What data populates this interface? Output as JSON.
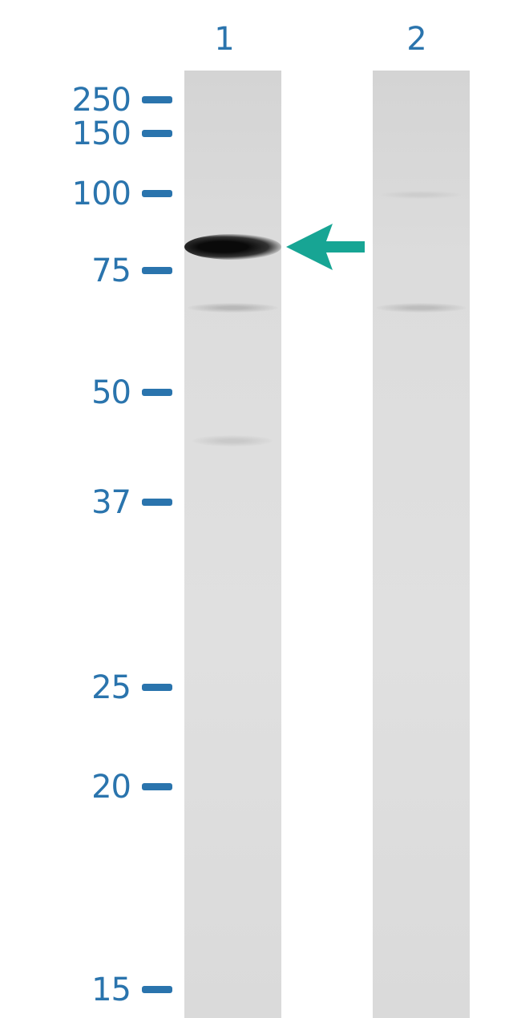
{
  "lanes": [
    {
      "label": "1"
    },
    {
      "label": "2"
    }
  ],
  "markers": [
    {
      "label": "250"
    },
    {
      "label": "150"
    },
    {
      "label": "100"
    },
    {
      "label": "75"
    },
    {
      "label": "50"
    },
    {
      "label": "37"
    },
    {
      "label": "25"
    },
    {
      "label": "20"
    },
    {
      "label": "15"
    }
  ],
  "colors": {
    "marker": "#2a74ad",
    "arrow": "#17a594",
    "band": "#111111"
  },
  "arrow_icon": "arrow-left-icon"
}
